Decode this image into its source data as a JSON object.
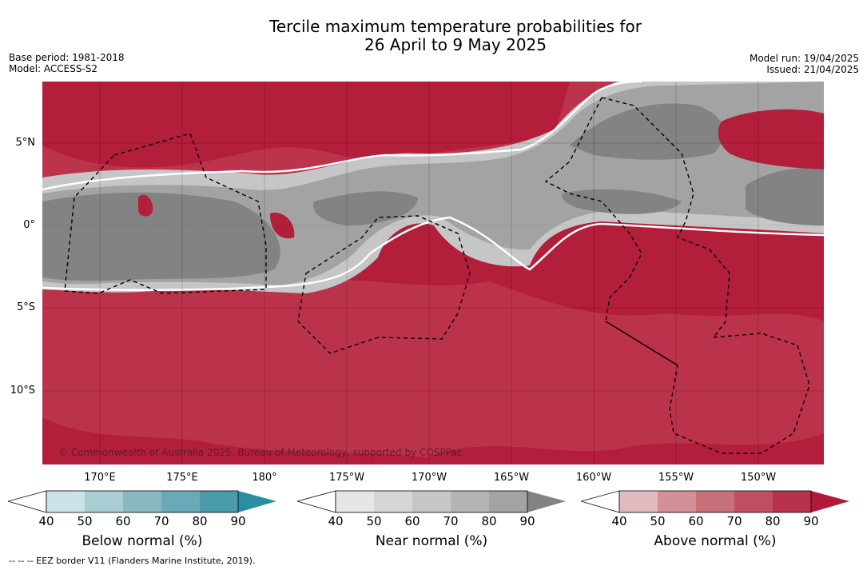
{
  "title": {
    "line1": "Tercile maximum temperature probabilities for",
    "line2": "26 April to 9 May 2025"
  },
  "meta": {
    "base_period": "Base period: 1981-2018",
    "model": "Model: ACCESS-S2",
    "model_run": "Model run: 19/04/2025",
    "issued": "Issued: 21/04/2025"
  },
  "map": {
    "copyright": "© Commonwealth of Australia 2025, Bureau of Meteorology, supported by COSPPac",
    "lat_labels": [
      "5°N",
      "0°",
      "5°S",
      "10°S"
    ],
    "lon_labels": [
      "170°E",
      "175°E",
      "180°",
      "175°W",
      "170°W",
      "165°W",
      "160°W",
      "155°W",
      "150°W"
    ],
    "colors": {
      "above_strong": "#b31e3a",
      "above_mid": "#c3475a",
      "near_dark": "#838383",
      "near_mid": "#a3a3a3",
      "near_light": "#c6c6c6"
    }
  },
  "legends": [
    {
      "title": "Below normal (%)",
      "ticks": [
        "40",
        "50",
        "60",
        "70",
        "80",
        "90"
      ],
      "colors": [
        "#c9e3e9",
        "#a8cdd3",
        "#89b8c3",
        "#6aa9b7",
        "#4a9bac",
        "#2a8fa2"
      ]
    },
    {
      "title": "Near normal (%)",
      "ticks": [
        "40",
        "50",
        "60",
        "70",
        "80",
        "90"
      ],
      "colors": [
        "#e6e6e6",
        "#d6d6d6",
        "#c6c6c6",
        "#b4b4b4",
        "#a3a3a3",
        "#838383"
      ]
    },
    {
      "title": "Above normal (%)",
      "ticks": [
        "40",
        "50",
        "60",
        "70",
        "80",
        "90"
      ],
      "colors": [
        "#e2b9bf",
        "#d49098",
        "#c77079",
        "#c0505f",
        "#b8334a",
        "#b01c38"
      ]
    }
  ],
  "footnote": "--  --  -- EEZ border V11 (Flanders Marine Institute, 2019)."
}
